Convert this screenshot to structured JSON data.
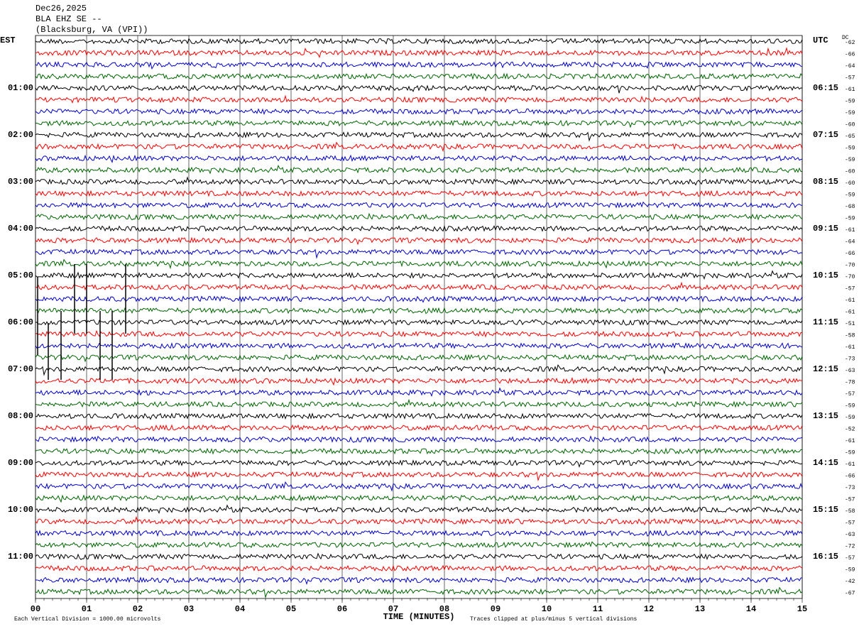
{
  "chart_data": {
    "type": "helicorder",
    "header": [
      "Dec26,2025",
      "BLA EHZ SE --",
      "(Blacksburg, VA (VPI))"
    ],
    "left_zone": "EST",
    "right_zone": "UTC",
    "dc_label": "DC",
    "colors": [
      "#000000",
      "#ff0000",
      "#0000cc",
      "#006600"
    ],
    "left_labels": [
      null,
      null,
      null,
      null,
      "01:00",
      null,
      null,
      null,
      "02:00",
      null,
      null,
      null,
      "03:00",
      null,
      null,
      null,
      "04:00",
      null,
      null,
      null,
      "05:00",
      null,
      null,
      null,
      "06:00",
      null,
      null,
      null,
      "07:00",
      null,
      null,
      null,
      "08:00",
      null,
      null,
      null,
      "09:00",
      null,
      null,
      null,
      "10:00",
      null,
      null,
      null,
      "11:00",
      null,
      null,
      null
    ],
    "right_labels": [
      null,
      null,
      null,
      null,
      "06:15",
      null,
      null,
      null,
      "07:15",
      null,
      null,
      null,
      "08:15",
      null,
      null,
      null,
      "09:15",
      null,
      null,
      null,
      "10:15",
      null,
      null,
      null,
      "11:15",
      null,
      null,
      null,
      "12:15",
      null,
      null,
      null,
      "13:15",
      null,
      null,
      null,
      "14:15",
      null,
      null,
      null,
      "15:15",
      null,
      null,
      null,
      "16:15",
      null,
      null,
      null
    ],
    "dc_values": [
      -62,
      -66,
      -64,
      -57,
      -61,
      -59,
      -59,
      -60,
      -65,
      -59,
      -59,
      -60,
      -60,
      -59,
      -68,
      -59,
      -61,
      -64,
      -66,
      -70,
      -70,
      -57,
      -61,
      -61,
      -51,
      -58,
      -61,
      -73,
      -63,
      -78,
      -57,
      -59,
      -59,
      -52,
      -61,
      -59,
      -61,
      -66,
      -73,
      -57,
      -58,
      -57,
      -63,
      -72,
      -57,
      -59,
      -42,
      -67
    ],
    "xlim": [
      0,
      15
    ],
    "xticks": [
      {
        "value": 0,
        "label": "00"
      },
      {
        "value": 1,
        "label": "01"
      },
      {
        "value": 2,
        "label": "02"
      },
      {
        "value": 3,
        "label": "03"
      },
      {
        "value": 4,
        "label": "04"
      },
      {
        "value": 5,
        "label": "05"
      },
      {
        "value": 6,
        "label": "06"
      },
      {
        "value": 7,
        "label": "07"
      },
      {
        "value": 8,
        "label": "08"
      },
      {
        "value": 9,
        "label": "09"
      },
      {
        "value": 10,
        "label": "10"
      },
      {
        "value": 11,
        "label": "11"
      },
      {
        "value": 12,
        "label": "12"
      },
      {
        "value": 13,
        "label": "13"
      },
      {
        "value": 14,
        "label": "14"
      },
      {
        "value": 15,
        "label": "15"
      }
    ],
    "xlabel": "TIME (MINUTES)",
    "scale_note": "Each Vertical Division = 1000.00 microvolts",
    "clip_note": "Traces clipped at plus/minus 5 vertical divisions"
  }
}
